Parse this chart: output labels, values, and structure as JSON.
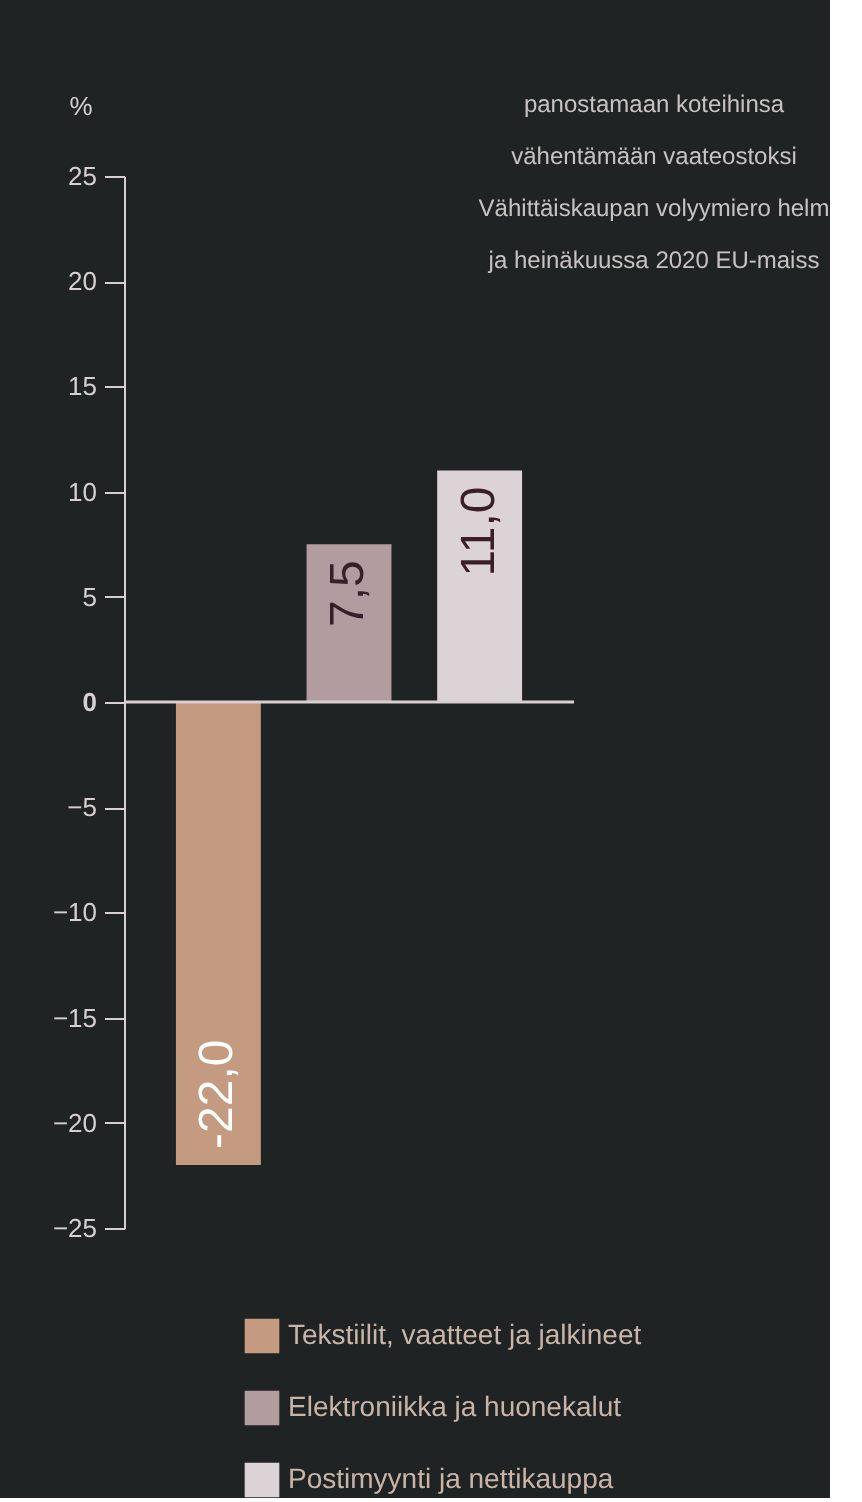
{
  "chart_data": {
    "type": "bar",
    "ylabel": "%",
    "categories": [
      null
    ],
    "series": [
      {
        "name": "Tekstiilit, vaatteet ja jalkineet",
        "color": "#c49a80",
        "values": [
          -22.0
        ],
        "value_labels": [
          "-22,0"
        ]
      },
      {
        "name": "Elektroniikka ja huonekalut",
        "color": "#b39ca0",
        "values": [
          7.5
        ],
        "value_labels": [
          "7,5"
        ]
      },
      {
        "name": "Postimyynti ja nettikauppa",
        "color": "#dcd3d6",
        "values": [
          11.0
        ],
        "value_labels": [
          "11,0"
        ]
      }
    ],
    "ylim": [
      -25,
      25
    ],
    "yticks": [
      -25,
      -20,
      -15,
      -10,
      -5,
      0,
      5,
      10,
      15,
      20,
      25
    ],
    "ref_lines": [
      {
        "axis": "y",
        "value": 0
      }
    ],
    "annotations": [
      "panostamaan koteihinsa",
      "vähentämään vaateostoksi",
      "Vähittäiskaupan volyymiero helm",
      "ja heinäkuussa 2020 EU-maiss"
    ],
    "legend": "bottom"
  }
}
